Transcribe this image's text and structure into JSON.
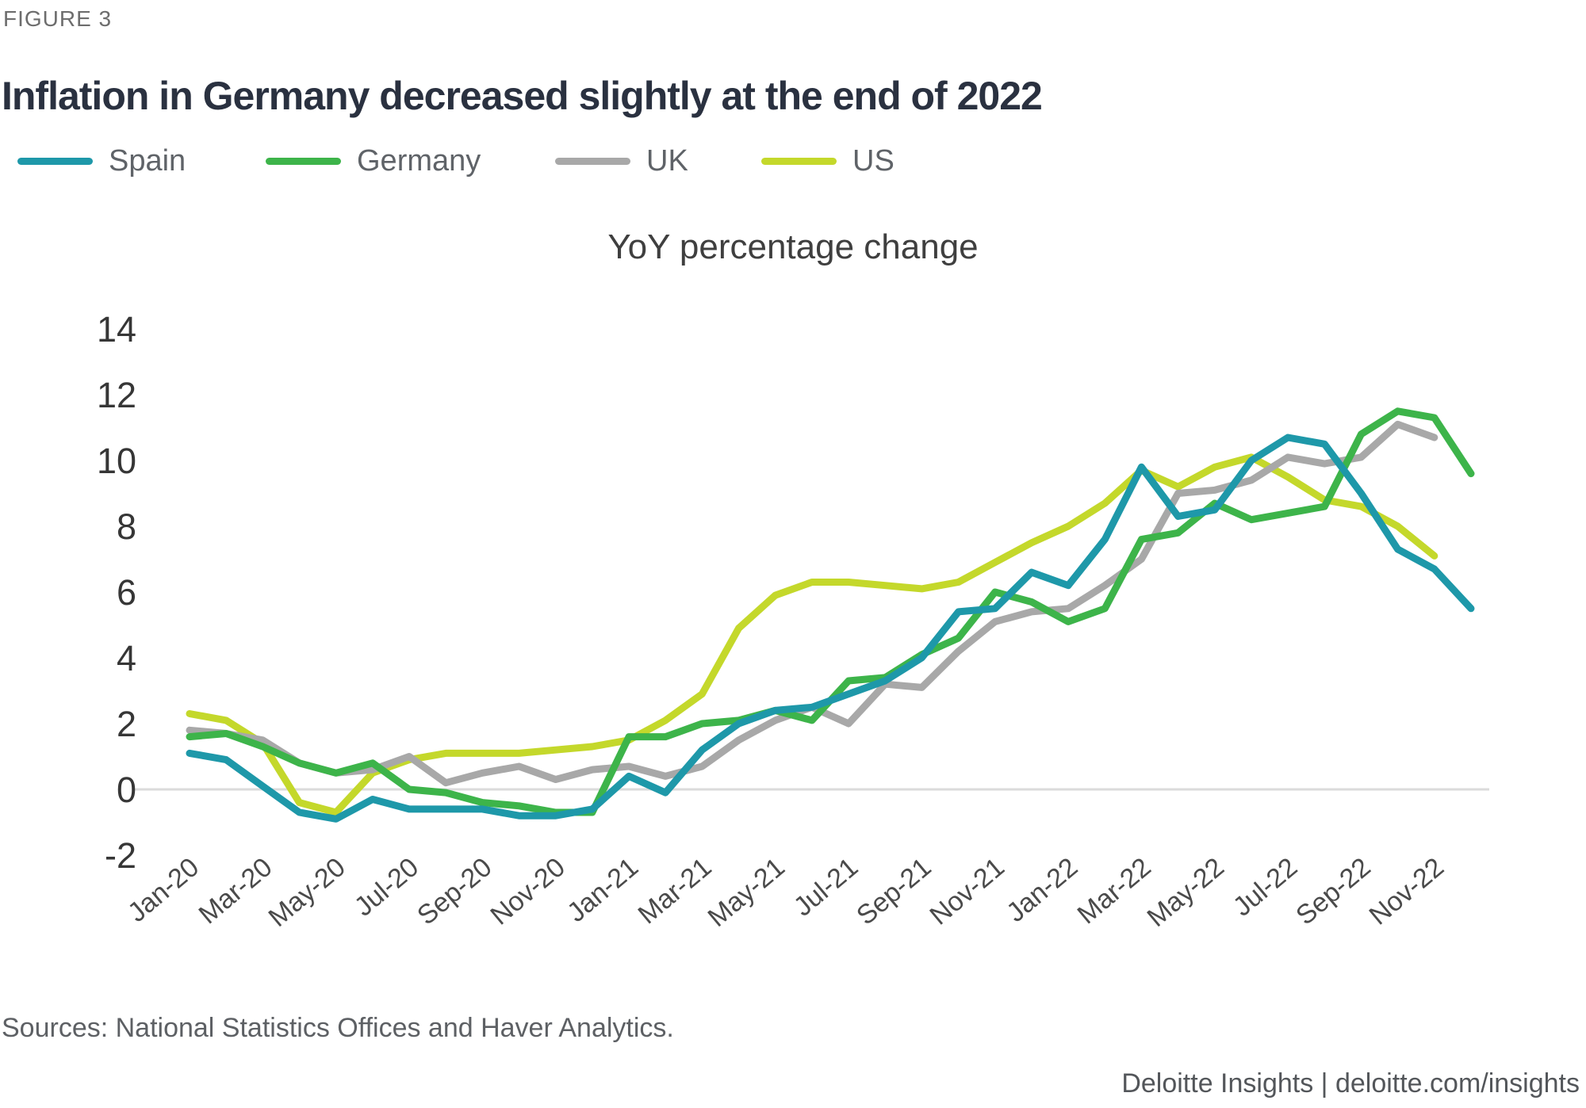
{
  "figure_label": "FIGURE 3",
  "title": "Inflation in Germany decreased slightly at the end of 2022",
  "subtitle": "YoY percentage change",
  "sources": "Sources: National Statistics Offices and Haver Analytics.",
  "footer": "Deloitte Insights | deloitte.com/insights",
  "colors": {
    "spain": "#1E98A9",
    "germany": "#3DB44A",
    "uk": "#A8A8A8",
    "us": "#C4D82B",
    "zero_line": "#DBDBDB",
    "title_text": "#2A3140",
    "y_axis_text": "#363636",
    "x_axis_text": "#4A4A4A",
    "muted_text": "#63666A"
  },
  "chart_data": {
    "type": "line",
    "title": "YoY percentage change",
    "xlabel": "",
    "ylabel": "",
    "ylim": [
      -2,
      14
    ],
    "grid": "zero-line-only",
    "legend_position": "top-left",
    "categories": [
      "Jan-20",
      "Feb-20",
      "Mar-20",
      "Apr-20",
      "May-20",
      "Jun-20",
      "Jul-20",
      "Aug-20",
      "Sep-20",
      "Oct-20",
      "Nov-20",
      "Dec-20",
      "Jan-21",
      "Feb-21",
      "Mar-21",
      "Apr-21",
      "May-21",
      "Jun-21",
      "Jul-21",
      "Aug-21",
      "Sep-21",
      "Oct-21",
      "Nov-21",
      "Dec-21",
      "Jan-22",
      "Feb-22",
      "Mar-22",
      "Apr-22",
      "May-22",
      "Jun-22",
      "Jul-22",
      "Aug-22",
      "Sep-22",
      "Oct-22",
      "Nov-22",
      "Dec-22"
    ],
    "x_tick_labels": [
      "Jan-20",
      "Mar-20",
      "May-20",
      "Jul-20",
      "Sep-20",
      "Nov-20",
      "Jan-21",
      "Mar-21",
      "May-21",
      "Jul-21",
      "Sep-21",
      "Nov-21",
      "Jan-22",
      "Mar-22",
      "May-22",
      "Jul-22",
      "Sep-22",
      "Nov-22"
    ],
    "y_ticks": [
      14,
      12,
      10,
      8,
      6,
      4,
      2,
      0,
      -2
    ],
    "series": [
      {
        "name": "Spain",
        "color_key": "spain",
        "values": [
          1.1,
          0.9,
          0.1,
          -0.7,
          -0.9,
          -0.3,
          -0.6,
          -0.6,
          -0.6,
          -0.8,
          -0.8,
          -0.6,
          0.4,
          -0.1,
          1.2,
          2.0,
          2.4,
          2.5,
          2.9,
          3.3,
          4.0,
          5.4,
          5.5,
          6.6,
          6.2,
          7.6,
          9.8,
          8.3,
          8.5,
          10.0,
          10.7,
          10.5,
          9.0,
          7.3,
          6.7,
          5.5
        ]
      },
      {
        "name": "Germany",
        "color_key": "germany",
        "values": [
          1.6,
          1.7,
          1.3,
          0.8,
          0.5,
          0.8,
          0.0,
          -0.1,
          -0.4,
          -0.5,
          -0.7,
          -0.7,
          1.6,
          1.6,
          2.0,
          2.1,
          2.4,
          2.1,
          3.3,
          3.4,
          4.1,
          4.6,
          6.0,
          5.7,
          5.1,
          5.5,
          7.6,
          7.8,
          8.7,
          8.2,
          8.4,
          8.6,
          10.8,
          11.5,
          11.3,
          9.6
        ]
      },
      {
        "name": "UK",
        "color_key": "uk",
        "values": [
          1.8,
          1.7,
          1.5,
          0.8,
          0.5,
          0.6,
          1.0,
          0.2,
          0.5,
          0.7,
          0.3,
          0.6,
          0.7,
          0.4,
          0.7,
          1.5,
          2.1,
          2.5,
          2.0,
          3.2,
          3.1,
          4.2,
          5.1,
          5.4,
          5.5,
          6.2,
          7.0,
          9.0,
          9.1,
          9.4,
          10.1,
          9.9,
          10.1,
          11.1,
          10.7,
          null
        ]
      },
      {
        "name": "US",
        "color_key": "us",
        "values": [
          2.3,
          2.1,
          1.4,
          -0.4,
          -0.7,
          0.5,
          0.9,
          1.1,
          1.1,
          1.1,
          1.2,
          1.3,
          1.5,
          2.1,
          2.9,
          4.9,
          5.9,
          6.3,
          6.3,
          6.2,
          6.1,
          6.3,
          6.9,
          7.5,
          8.0,
          8.7,
          9.7,
          9.2,
          9.8,
          10.1,
          9.5,
          8.8,
          8.6,
          8.0,
          7.1,
          null
        ]
      }
    ]
  }
}
